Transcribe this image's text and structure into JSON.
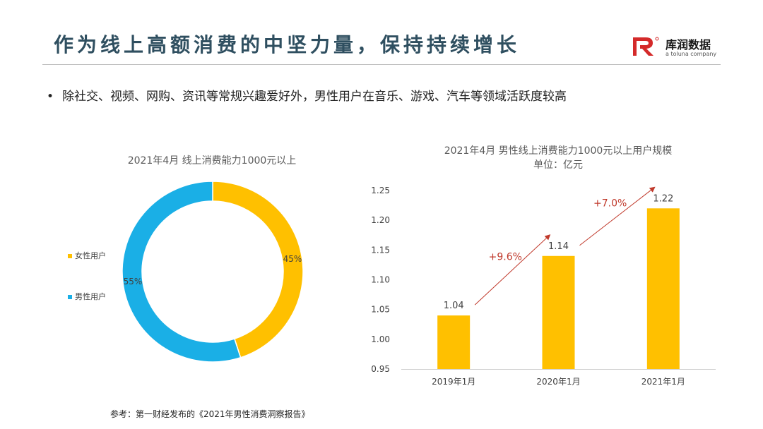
{
  "header": {
    "title": "作为线上高额消费的中坚力量，保持持续增长",
    "logo_name": "库润数据",
    "logo_tagline": "a toluna company"
  },
  "bullet_text": "除社交、视频、网购、资讯等常规兴趣爱好外，男性用户在音乐、游戏、汽车等领域活跃度较高",
  "footer_text": "参考：第一财经发布的《2021年男性消费洞察报告》",
  "colors": {
    "yellow": "#FFC000",
    "blue": "#1AAFE6",
    "arrow": "#C0392B",
    "title": "#2f4f60"
  },
  "chart_data": [
    {
      "type": "pie",
      "title": "2021年4月 线上消费能力1000元以上",
      "legend_position": "left",
      "slices": [
        {
          "label": "女性用户",
          "value": 45,
          "value_label": "45%",
          "color": "#FFC000"
        },
        {
          "label": "男性用户",
          "value": 55,
          "value_label": "55%",
          "color": "#1AAFE6"
        }
      ]
    },
    {
      "type": "bar",
      "title": "2021年4月  男性线上消费能力1000元以上用户规模",
      "subtitle": "单位：亿元",
      "categories": [
        "2019年1月",
        "2020年1月",
        "2021年1月"
      ],
      "values": [
        1.04,
        1.14,
        1.22
      ],
      "value_labels": [
        "1.04",
        "1.14",
        "1.22"
      ],
      "ylim": [
        0.95,
        1.25
      ],
      "yticks": [
        "0.95",
        "1.00",
        "1.05",
        "1.10",
        "1.15",
        "1.20",
        "1.25"
      ],
      "color": "#FFC000",
      "annotations": [
        {
          "text": "+9.6%",
          "from": 0,
          "to": 1
        },
        {
          "text": "+7.0%",
          "from": 1,
          "to": 2
        }
      ]
    }
  ]
}
